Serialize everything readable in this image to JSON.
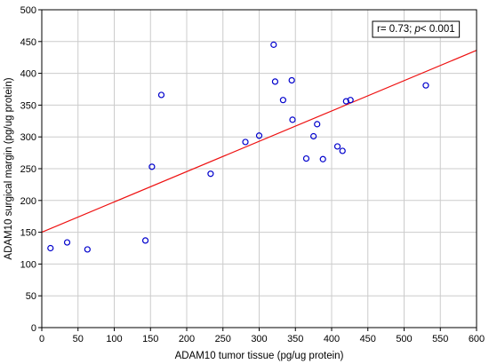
{
  "chart_data": {
    "type": "scatter",
    "title": "",
    "xlabel": "ADAM10 tumor tissue (pg/ug protein)",
    "ylabel": "ADAM10 surgical margin (pg/ug protein)",
    "xlim": [
      0,
      600
    ],
    "ylim": [
      0,
      500
    ],
    "xticks": [
      0,
      50,
      100,
      150,
      200,
      250,
      300,
      350,
      400,
      450,
      500,
      550,
      600
    ],
    "yticks": [
      0,
      50,
      100,
      150,
      200,
      250,
      300,
      350,
      400,
      450,
      500
    ],
    "grid": true,
    "annotation": {
      "prefix": "r= 0.73; ",
      "italic": "p",
      "suffix": "< 0.001",
      "position": "top-right"
    },
    "points": [
      {
        "x": 12,
        "y": 125
      },
      {
        "x": 35,
        "y": 134
      },
      {
        "x": 63,
        "y": 123
      },
      {
        "x": 143,
        "y": 137
      },
      {
        "x": 152,
        "y": 253
      },
      {
        "x": 165,
        "y": 366
      },
      {
        "x": 233,
        "y": 242
      },
      {
        "x": 281,
        "y": 292
      },
      {
        "x": 300,
        "y": 302
      },
      {
        "x": 320,
        "y": 445
      },
      {
        "x": 322,
        "y": 387
      },
      {
        "x": 333,
        "y": 358
      },
      {
        "x": 345,
        "y": 389
      },
      {
        "x": 346,
        "y": 327
      },
      {
        "x": 365,
        "y": 266
      },
      {
        "x": 375,
        "y": 301
      },
      {
        "x": 380,
        "y": 320
      },
      {
        "x": 388,
        "y": 265
      },
      {
        "x": 408,
        "y": 285
      },
      {
        "x": 415,
        "y": 278
      },
      {
        "x": 420,
        "y": 356
      },
      {
        "x": 426,
        "y": 358
      },
      {
        "x": 530,
        "y": 381
      }
    ],
    "regression": {
      "intercept": 150,
      "slope": 0.477
    },
    "colors": {
      "marker": "#0000cc",
      "line": "#ee1111",
      "grid": "#cccccc"
    }
  }
}
